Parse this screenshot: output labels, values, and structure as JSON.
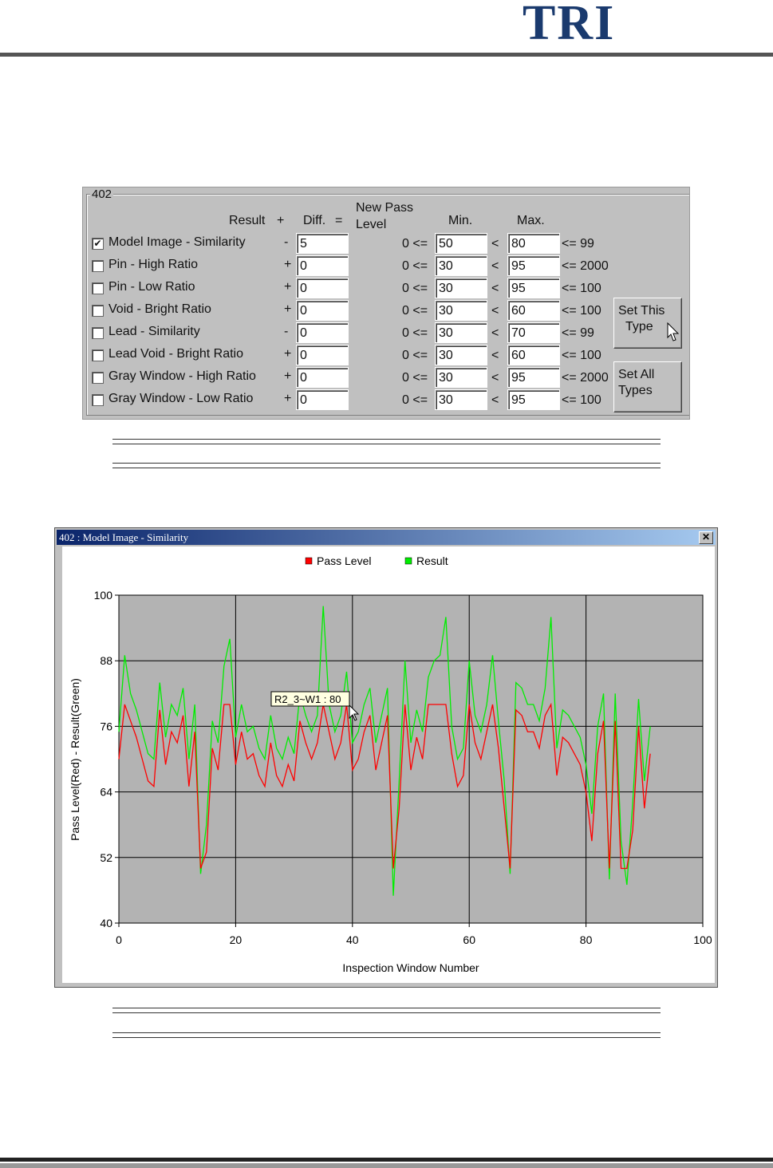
{
  "header": {
    "logo": "TRI"
  },
  "dialog": {
    "group_title": "402",
    "headers": {
      "result": "Result",
      "plus": "+",
      "diff": "Diff.",
      "equals": "=",
      "new_pass_line1": "New Pass",
      "new_pass_line2": "Level",
      "min": "Min.",
      "max": "Max."
    },
    "rows": [
      {
        "label": "Model Image - Similarity",
        "checked": true,
        "check": "✔",
        "sign": "-",
        "diff": "5",
        "lo": "0 <=",
        "min": "50",
        "lt": "<",
        "max": "80",
        "limit": "<= 99"
      },
      {
        "label": "Pin - High Ratio",
        "checked": false,
        "check": "",
        "sign": "+",
        "diff": "0",
        "lo": "0 <=",
        "min": "30",
        "lt": "<",
        "max": "95",
        "limit": "<= 2000"
      },
      {
        "label": "Pin - Low Ratio",
        "checked": false,
        "check": "",
        "sign": "+",
        "diff": "0",
        "lo": "0 <=",
        "min": "30",
        "lt": "<",
        "max": "95",
        "limit": "<= 100"
      },
      {
        "label": "Void - Bright Ratio",
        "checked": false,
        "check": "",
        "sign": "+",
        "diff": "0",
        "lo": "0 <=",
        "min": "30",
        "lt": "<",
        "max": "60",
        "limit": "<= 100"
      },
      {
        "label": "Lead - Similarity",
        "checked": false,
        "check": "",
        "sign": "-",
        "diff": "0",
        "lo": "0 <=",
        "min": "30",
        "lt": "<",
        "max": "70",
        "limit": "<= 99"
      },
      {
        "label": "Lead Void - Bright Ratio",
        "checked": false,
        "check": "",
        "sign": "+",
        "diff": "0",
        "lo": "0 <=",
        "min": "30",
        "lt": "<",
        "max": "60",
        "limit": "<= 100"
      },
      {
        "label": "Gray Window - High Ratio",
        "checked": false,
        "check": "",
        "sign": "+",
        "diff": "0",
        "lo": "0 <=",
        "min": "30",
        "lt": "<",
        "max": "95",
        "limit": "<= 2000"
      },
      {
        "label": "Gray Window - Low Ratio",
        "checked": false,
        "check": "",
        "sign": "+",
        "diff": "0",
        "lo": "0 <=",
        "min": "30",
        "lt": "<",
        "max": "95",
        "limit": "<= 100"
      }
    ],
    "buttons": {
      "set_this_1": "Set This",
      "set_this_2": "Type",
      "set_all_1": "Set All",
      "set_all_2": "Types"
    }
  },
  "chart_window": {
    "title": "402 : Model Image - Similarity",
    "close": "✕",
    "tooltip": "R2_3~W1 : 80"
  },
  "colors": {
    "pass": "#ff0000",
    "result": "#00ee00",
    "plot_bg": "#b3b3b3"
  },
  "chart_data": {
    "type": "line",
    "title": "",
    "xlabel": "Inspection Window Number",
    "ylabel": "Pass Level(Red) - Result(Green)",
    "xlim": [
      0,
      100
    ],
    "ylim": [
      40,
      100
    ],
    "xticks": [
      "0",
      "20",
      "40",
      "60",
      "80",
      "100"
    ],
    "yticks": [
      "100",
      "88",
      "76",
      "64",
      "52",
      "40"
    ],
    "legend": [
      "Pass Level",
      "Result"
    ],
    "legend_position": "top-center",
    "series": [
      {
        "name": "Result",
        "color": "#00ee00",
        "values": [
          75,
          89,
          82,
          79,
          75,
          71,
          70,
          84,
          74,
          80,
          78,
          83,
          70,
          80,
          49,
          58,
          77,
          73,
          87,
          92,
          74,
          80,
          75,
          76,
          72,
          70,
          78,
          72,
          70,
          74,
          71,
          82,
          78,
          75,
          78,
          98,
          80,
          75,
          78,
          86,
          73,
          75,
          80,
          83,
          73,
          78,
          83,
          45,
          66,
          88,
          73,
          79,
          75,
          85,
          88,
          89,
          96,
          76,
          70,
          72,
          88,
          78,
          75,
          80,
          89,
          77,
          66,
          49,
          84,
          83,
          80,
          80,
          77,
          83,
          96,
          72,
          79,
          78,
          76,
          74,
          69,
          60,
          76,
          82,
          48,
          82,
          55,
          47,
          62,
          81,
          66,
          76
        ]
      },
      {
        "name": "Pass Level",
        "color": "#ff0000",
        "values": [
          70,
          80,
          77,
          74,
          70,
          66,
          65,
          79,
          69,
          75,
          73,
          78,
          65,
          75,
          50,
          53,
          72,
          68,
          80,
          80,
          69,
          75,
          70,
          71,
          67,
          65,
          73,
          67,
          65,
          69,
          66,
          77,
          73,
          70,
          73,
          80,
          75,
          70,
          73,
          80,
          68,
          70,
          75,
          78,
          68,
          73,
          78,
          50,
          61,
          80,
          68,
          74,
          70,
          80,
          80,
          80,
          80,
          71,
          65,
          67,
          80,
          73,
          70,
          75,
          80,
          72,
          61,
          50,
          79,
          78,
          75,
          75,
          72,
          78,
          80,
          67,
          74,
          73,
          71,
          69,
          64,
          55,
          71,
          77,
          50,
          77,
          50,
          50,
          57,
          76,
          61,
          71
        ]
      }
    ]
  }
}
